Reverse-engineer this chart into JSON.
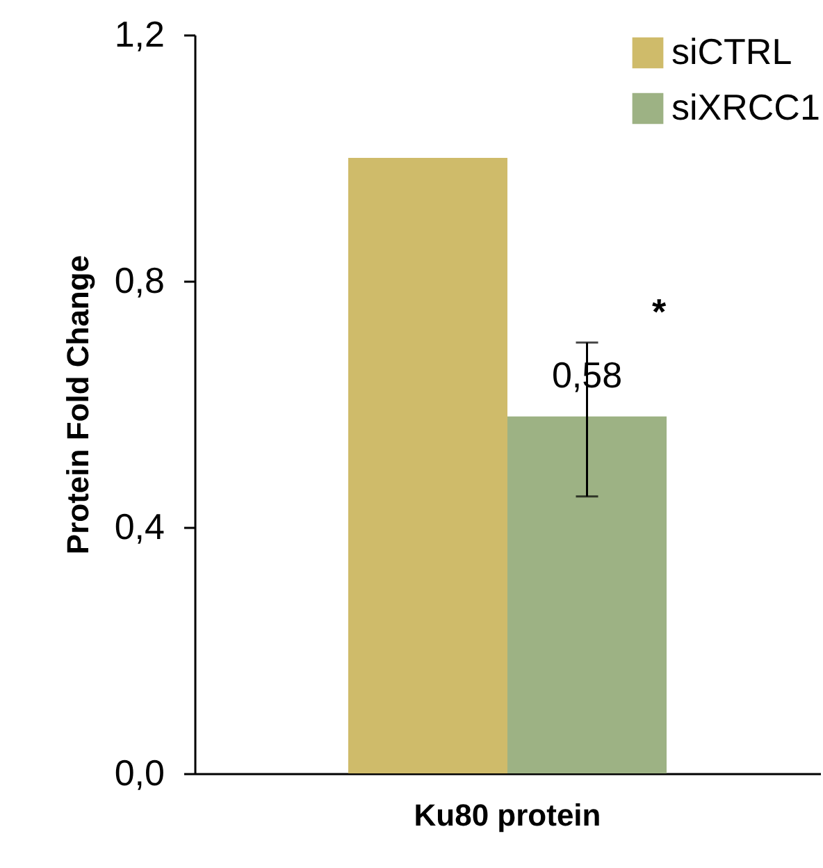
{
  "chart_data": {
    "type": "bar",
    "ylabel": "Protein Fold Change",
    "categories": [
      "Ku80 protein"
    ],
    "series": [
      {
        "name": "siCTRL",
        "color": "#cfbb6a",
        "values": [
          1.0
        ]
      },
      {
        "name": "siXRCC1",
        "color": "#9db284",
        "values": [
          0.58
        ],
        "errors": [
          [
            0.45,
            0.7
          ]
        ],
        "value_labels": [
          "0,58"
        ]
      }
    ],
    "ylim": [
      0,
      1.2
    ],
    "yticks": [
      {
        "value": 0,
        "label": "0,0"
      },
      {
        "value": 0.4,
        "label": "0,4"
      },
      {
        "value": 0.8,
        "label": "0,8"
      },
      {
        "value": 1.2,
        "label": "1,2"
      }
    ],
    "annotations": [
      "*"
    ],
    "legend": "top right",
    "grid": false
  }
}
